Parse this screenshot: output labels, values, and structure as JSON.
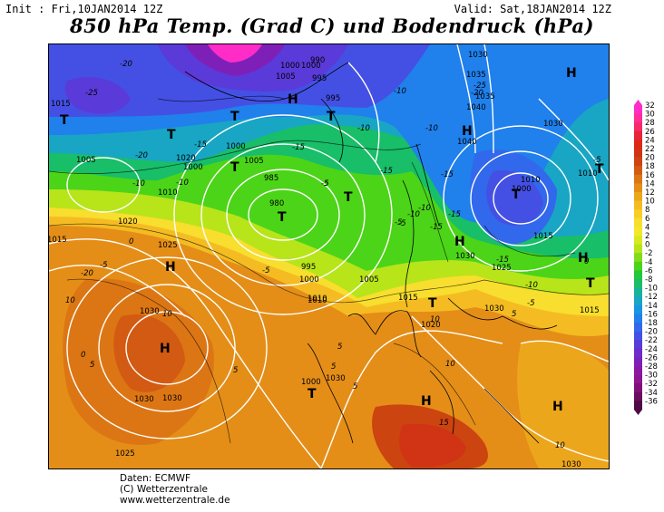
{
  "header": {
    "init": "Init : Fri,10JAN2014 12Z",
    "valid": "Valid: Sat,18JAN2014 12Z",
    "title": "850 hPa Temp. (Grad C) und Bodendruck (hPa)"
  },
  "map": {
    "pressure_systems": [
      {
        "type": "H",
        "label": "H"
      },
      {
        "type": "H",
        "label": "H"
      },
      {
        "type": "H",
        "label": "H"
      },
      {
        "type": "H",
        "label": "H"
      },
      {
        "type": "H",
        "label": "H"
      },
      {
        "type": "H",
        "label": "H"
      },
      {
        "type": "H",
        "label": "H"
      },
      {
        "type": "H",
        "label": "H"
      },
      {
        "type": "H",
        "label": "H"
      },
      {
        "type": "T",
        "label": "T"
      },
      {
        "type": "T",
        "label": "T"
      },
      {
        "type": "T",
        "label": "T"
      },
      {
        "type": "T",
        "label": "T"
      },
      {
        "type": "T",
        "label": "T"
      },
      {
        "type": "T",
        "label": "T"
      },
      {
        "type": "T",
        "label": "T"
      },
      {
        "type": "T",
        "label": "T"
      },
      {
        "type": "T",
        "label": "T"
      },
      {
        "type": "T",
        "label": "T"
      },
      {
        "type": "T",
        "label": "T"
      },
      {
        "type": "T",
        "label": "T"
      }
    ],
    "isobar_labels": [
      "1015",
      "1005",
      "1000",
      "1010",
      "1020",
      "1025",
      "1030",
      "1030",
      "1030",
      "1025",
      "985",
      "980",
      "995",
      "1000",
      "1010",
      "1005",
      "1015",
      "1020",
      "1000",
      "990",
      "995",
      "1000",
      "1005",
      "1005",
      "995",
      "1000",
      "1010",
      "1035",
      "1040",
      "1040",
      "1035",
      "1030",
      "1030",
      "1025",
      "1030",
      "1015",
      "1020",
      "1010",
      "1000",
      "1000",
      "1010",
      "1015",
      "1015",
      "1030",
      "1030",
      "1030"
    ],
    "temperature_labels": [
      "-20",
      "-25",
      "-20",
      "-15",
      "-15",
      "-10",
      "-5",
      "-5",
      "-10",
      "-10",
      "-15",
      "-10",
      "-5",
      "-10",
      "-15",
      "-10",
      "-20",
      "-20",
      "-15",
      "-15",
      "-10",
      "-10",
      "-5",
      "-5",
      "-5",
      "0",
      "0",
      "5",
      "5",
      "5",
      "10",
      "10",
      "10",
      "10",
      "5",
      "5",
      "15",
      "5",
      "10",
      "0",
      "-5",
      "-25",
      "-15",
      "-5"
    ]
  },
  "legend": {
    "values": [
      "32",
      "30",
      "28",
      "26",
      "24",
      "22",
      "20",
      "18",
      "16",
      "14",
      "12",
      "10",
      "8",
      "6",
      "4",
      "2",
      "0",
      "-2",
      "-4",
      "-6",
      "-8",
      "-10",
      "-12",
      "-14",
      "-16",
      "-18",
      "-20",
      "-22",
      "-24",
      "-26",
      "-28",
      "-30",
      "-32",
      "-34",
      "-36"
    ],
    "colors": [
      "#ff2cc8",
      "#ff2c9a",
      "#f52a6a",
      "#e8243a",
      "#dc2816",
      "#d03414",
      "#cc4410",
      "#d35a12",
      "#dc7614",
      "#e48e18",
      "#eca61c",
      "#f4bc22",
      "#f8ce26",
      "#f8de2e",
      "#f2e82a",
      "#d6ea22",
      "#b8e41a",
      "#84dc18",
      "#4cd418",
      "#22c838",
      "#18be68",
      "#16b29a",
      "#18a6c4",
      "#1896e0",
      "#2080ec",
      "#3268ec",
      "#4450e4",
      "#5a3ad8",
      "#6e2cc8",
      "#7e20b8",
      "#8a18a4",
      "#8e1490",
      "#801078",
      "#6a0c60",
      "#4e0a46"
    ]
  },
  "credits": {
    "line1": "Daten: ECMWF",
    "line2": "(C) Wetterzentrale",
    "line3": "www.wetterzentrale.de"
  }
}
